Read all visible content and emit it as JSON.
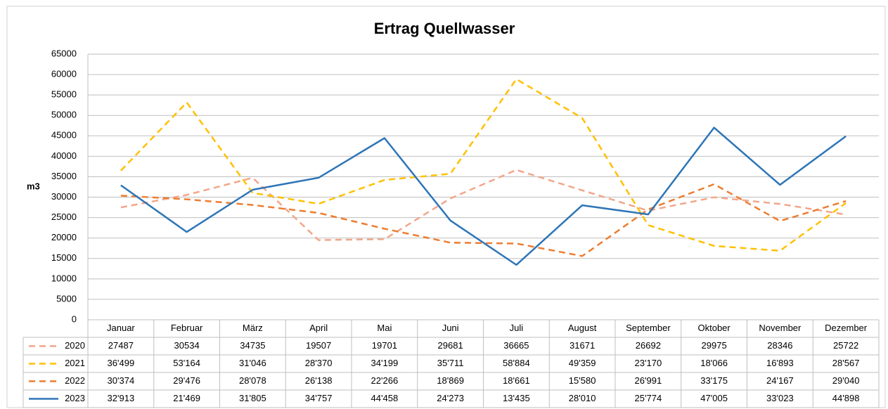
{
  "chart_data": {
    "type": "line",
    "title": "Ertrag Quellwasser",
    "ylabel": "m3",
    "categories": [
      "Januar",
      "Februar",
      "März",
      "April",
      "Mai",
      "Juni",
      "Juli",
      "August",
      "September",
      "Oktober",
      "November",
      "Dezember"
    ],
    "series": [
      {
        "name": "2020",
        "color": "#f2a68a",
        "dash": true,
        "values": [
          27487,
          30534,
          34735,
          19507,
          19701,
          29681,
          36665,
          31671,
          26692,
          29975,
          28346,
          25722
        ]
      },
      {
        "name": "2021",
        "color": "#ffc000",
        "dash": true,
        "values": [
          36499,
          53164,
          31046,
          28370,
          34199,
          35711,
          58884,
          49359,
          23170,
          18066,
          16893,
          28567
        ],
        "value_labels": [
          "36'499",
          "53'164",
          "31'046",
          "28'370",
          "34'199",
          "35'711",
          "58'884",
          "49'359",
          "23'170",
          "18'066",
          "16'893",
          "28'567"
        ]
      },
      {
        "name": "2022",
        "color": "#ed7d31",
        "dash": true,
        "values": [
          30374,
          29476,
          28078,
          26138,
          22266,
          18869,
          18661,
          15580,
          26991,
          33175,
          24167,
          29040
        ],
        "value_labels": [
          "30'374",
          "29'476",
          "28'078",
          "26'138",
          "22'266",
          "18'869",
          "18'661",
          "15'580",
          "26'991",
          "33'175",
          "24'167",
          "29'040"
        ]
      },
      {
        "name": "2023",
        "color": "#2e75b6",
        "dash": false,
        "values": [
          32913,
          21469,
          31805,
          34757,
          44458,
          24273,
          13435,
          28010,
          25774,
          47005,
          33023,
          44898
        ],
        "value_labels": [
          "32'913",
          "21'469",
          "31'805",
          "34'757",
          "44'458",
          "24'273",
          "13'435",
          "28'010",
          "25'774",
          "47'005",
          "33'023",
          "44'898"
        ]
      }
    ],
    "ylim": [
      0,
      65000
    ],
    "yticks": [
      0,
      5000,
      10000,
      15000,
      20000,
      25000,
      30000,
      35000,
      40000,
      45000,
      50000,
      55000,
      60000,
      65000
    ],
    "grid": true,
    "data_table": true
  }
}
